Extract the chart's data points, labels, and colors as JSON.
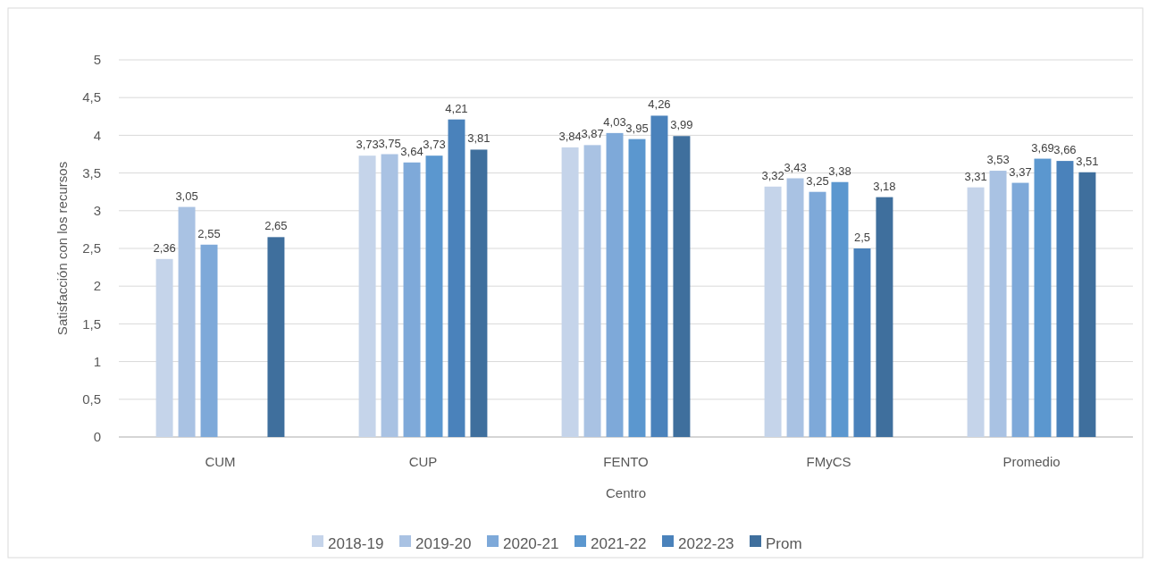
{
  "chart_data": {
    "type": "bar",
    "xlabel": "Centro",
    "ylabel": "Satisfacción con los recursos",
    "categories": [
      "CUM",
      "CUP",
      "FENTO",
      "FMyCS",
      "Promedio"
    ],
    "ylim": [
      0,
      5
    ],
    "yticks": [
      0,
      {
        "value": 0.5,
        "label": "0,5"
      },
      1,
      {
        "value": 1.5,
        "label": "1,5"
      },
      2,
      {
        "value": 2.5,
        "label": "2,5"
      },
      3,
      {
        "value": 3.5,
        "label": "3,5"
      },
      4,
      {
        "value": 4.5,
        "label": "4,5"
      },
      5
    ],
    "grid": "y",
    "legend": "bottom",
    "series": [
      {
        "name": "2018-19",
        "color": "#c5d4ea",
        "values": [
          2.36,
          3.73,
          3.84,
          3.32,
          3.31
        ],
        "value_labels": [
          "2,36",
          "3,73",
          "3,84",
          "3,32",
          "3,31"
        ]
      },
      {
        "name": "2019-20",
        "color": "#a9c2e3",
        "values": [
          3.05,
          3.75,
          3.87,
          3.43,
          3.53
        ],
        "value_labels": [
          "3,05",
          "3,75",
          "3,87",
          "3,43",
          "3,53"
        ]
      },
      {
        "name": "2020-21",
        "color": "#7ea9d9",
        "values": [
          2.55,
          3.64,
          4.03,
          3.25,
          3.37
        ],
        "value_labels": [
          "2,55",
          "3,64",
          "4,03",
          "3,25",
          "3,37"
        ]
      },
      {
        "name": "2021-22",
        "color": "#5b97cf",
        "values": [
          null,
          3.73,
          3.95,
          3.38,
          3.69
        ],
        "value_labels": [
          null,
          "3,73",
          "3,95",
          "3,38",
          "3,69"
        ]
      },
      {
        "name": "2022-23",
        "color": "#4a82bb",
        "values": [
          null,
          4.21,
          4.26,
          2.5,
          3.66
        ],
        "value_labels": [
          null,
          "4,21",
          "4,26",
          "2,5",
          "3,66"
        ]
      },
      {
        "name": "Prom",
        "color": "#3f6f9d",
        "values": [
          2.65,
          3.81,
          3.99,
          3.18,
          3.51
        ],
        "value_labels": [
          "2,65",
          "3,81",
          "3,99",
          "3,18",
          "3,51"
        ]
      }
    ]
  }
}
